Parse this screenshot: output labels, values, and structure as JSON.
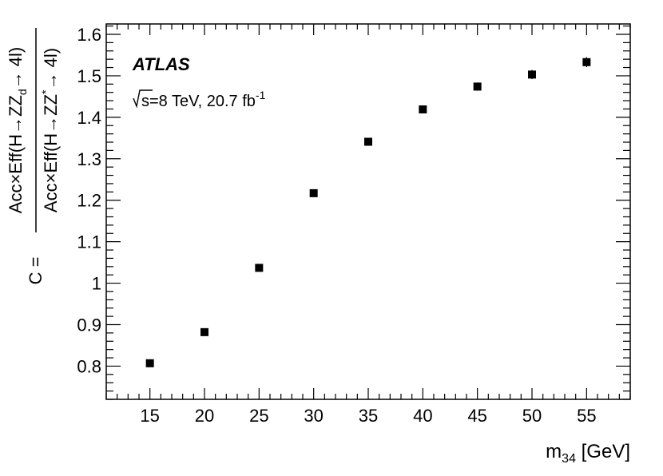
{
  "chart_data": {
    "type": "scatter",
    "experiment_label": "ATLAS",
    "lumi_label": {
      "main": "s=8 TeV, 20.7 fb",
      "superscript": "-1"
    },
    "xlabel": {
      "main": "m",
      "subscript": "34",
      "unit": " [GeV]"
    },
    "ylabel": {
      "prefix": "C =",
      "numerator": {
        "main": "Acc×Eff(H→ZZ",
        "subscript": "d",
        "suffix": "→ 4l)"
      },
      "denominator": {
        "main": "Acc×Eff(H→ZZ",
        "superscript": "*",
        "suffix": "→ 4l)"
      }
    },
    "xlim": [
      11,
      59
    ],
    "ylim": [
      0.72,
      1.625
    ],
    "x_ticks": [
      15,
      20,
      25,
      30,
      35,
      40,
      45,
      50,
      55
    ],
    "x_tick_labels": [
      "15",
      "20",
      "25",
      "30",
      "35",
      "40",
      "45",
      "50",
      "55"
    ],
    "y_ticks": [
      0.8,
      0.9,
      1.0,
      1.1,
      1.2,
      1.3,
      1.4,
      1.5,
      1.6
    ],
    "y_tick_labels": [
      "0.8",
      "0.9",
      "1",
      "1.1",
      "1.2",
      "1.3",
      "1.4",
      "1.5",
      "1.6"
    ],
    "series": [
      {
        "x": [
          15,
          20,
          25,
          30,
          35,
          40,
          45,
          50,
          55
        ],
        "y": [
          0.807,
          0.882,
          1.037,
          1.217,
          1.341,
          1.419,
          1.474,
          1.503,
          1.533
        ],
        "yerr": [
          0.004,
          0.005,
          0.006,
          0.007,
          0.007,
          0.008,
          0.01,
          0.011,
          0.012
        ]
      }
    ],
    "grid": false,
    "marker": "square",
    "color": "#000000"
  }
}
